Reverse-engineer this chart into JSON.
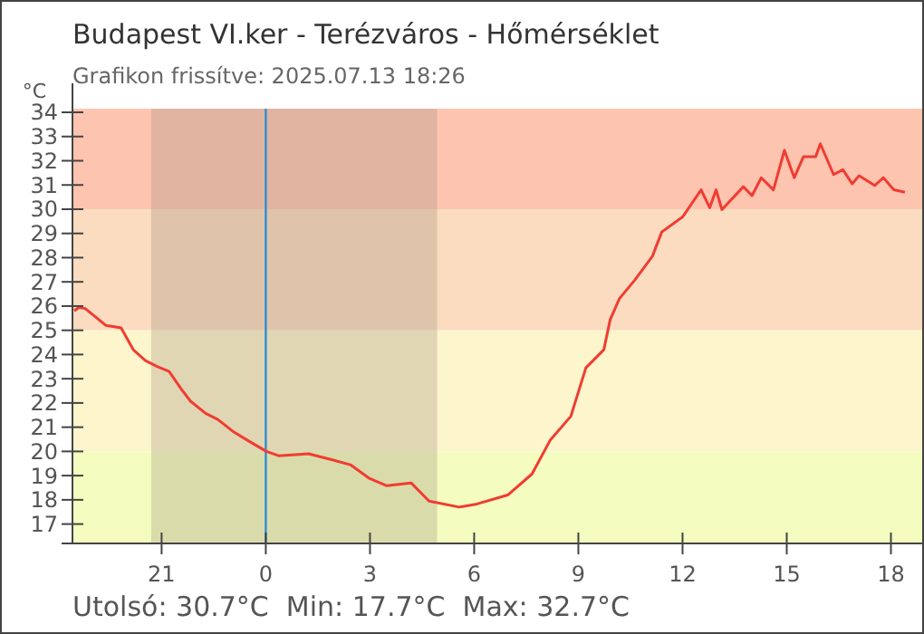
{
  "chart_data": {
    "type": "line",
    "title": "Budapest VI.ker - Terézváros - Hőmérséklet",
    "subtitle": "Grafikon frissítve: 2025.07.13 18:26",
    "ylabel": "°C",
    "annotations": [
      "Utolsó: 30.7°C  Min: 17.7°C  Max: 32.7°C"
    ],
    "xlim": [
      "2025-07-12T18:26",
      "2025-07-13T18:54"
    ],
    "ylim": [
      16.2,
      34.15
    ],
    "xticks": [
      {
        "value": "2025-07-12T21:00",
        "label": "21"
      },
      {
        "value": "2025-07-13T00:00",
        "label": "0"
      },
      {
        "value": "2025-07-13T03:00",
        "label": "3"
      },
      {
        "value": "2025-07-13T06:00",
        "label": "6"
      },
      {
        "value": "2025-07-13T09:00",
        "label": "9"
      },
      {
        "value": "2025-07-13T12:00",
        "label": "12"
      },
      {
        "value": "2025-07-13T15:00",
        "label": "15"
      },
      {
        "value": "2025-07-13T18:00",
        "label": "18"
      }
    ],
    "yticks": [
      17,
      18,
      19,
      20,
      21,
      22,
      23,
      24,
      25,
      26,
      27,
      28,
      29,
      30,
      31,
      32,
      33,
      34
    ],
    "grid": false,
    "marker": "none",
    "line_style": "solid",
    "bands": [
      {
        "axis": "y",
        "from": 30,
        "to": 34.15,
        "color": "#fdc4b0"
      },
      {
        "axis": "y",
        "from": 25,
        "to": 30,
        "color": "#fbdcc0"
      },
      {
        "axis": "y",
        "from": 20,
        "to": 25,
        "color": "#fdf5cc"
      },
      {
        "axis": "y",
        "from": 16.2,
        "to": 20,
        "color": "#f4fcc0"
      },
      {
        "axis": "x",
        "from": "2025-07-12T20:42",
        "to": "2025-07-13T04:56",
        "color": "#a0907a"
      }
    ],
    "ref_lines": [
      {
        "axis": "x",
        "value": "2025-07-13T00:00",
        "color": "#2a8fd8"
      }
    ],
    "series": [
      {
        "color": "#f03c32",
        "x": [
          "2025-07-12T18:29",
          "2025-07-12T18:37",
          "2025-07-12T18:48",
          "2025-07-12T18:58",
          "2025-07-12T19:24",
          "2025-07-12T19:50",
          "2025-07-12T20:11",
          "2025-07-12T20:32",
          "2025-07-12T20:53",
          "2025-07-12T21:13",
          "2025-07-12T21:34",
          "2025-07-12T21:50",
          "2025-07-12T22:16",
          "2025-07-12T22:37",
          "2025-07-12T23:03",
          "2025-07-12T23:29",
          "2025-07-13T00:01",
          "2025-07-13T00:22",
          "2025-07-13T01:14",
          "2025-07-13T01:55",
          "2025-07-13T02:26",
          "2025-07-13T02:58",
          "2025-07-13T03:29",
          "2025-07-13T04:11",
          "2025-07-13T04:42",
          "2025-07-13T05:34",
          "2025-07-13T06:05",
          "2025-07-13T06:58",
          "2025-07-13T07:40",
          "2025-07-13T08:11",
          "2025-07-13T08:47",
          "2025-07-13T09:13",
          "2025-07-13T09:44",
          "2025-07-13T09:55",
          "2025-07-13T10:11",
          "2025-07-13T10:37",
          "2025-07-13T11:08",
          "2025-07-13T11:24",
          "2025-07-13T12:00",
          "2025-07-13T12:32",
          "2025-07-13T12:47",
          "2025-07-13T12:58",
          "2025-07-13T13:08",
          "2025-07-13T13:45",
          "2025-07-13T14:00",
          "2025-07-13T14:16",
          "2025-07-13T14:37",
          "2025-07-13T14:56",
          "2025-07-13T15:13",
          "2025-07-13T15:29",
          "2025-07-13T15:50",
          "2025-07-13T15:58",
          "2025-07-13T16:21",
          "2025-07-13T16:37",
          "2025-07-13T16:53",
          "2025-07-13T17:05",
          "2025-07-13T17:32",
          "2025-07-13T17:47",
          "2025-07-13T18:05",
          "2025-07-13T18:24"
        ],
        "values": [
          25.8,
          25.94,
          25.9,
          25.7,
          25.2,
          25.1,
          24.2,
          23.75,
          23.5,
          23.3,
          22.57,
          22.07,
          21.57,
          21.32,
          20.83,
          20.45,
          20.0,
          19.82,
          19.9,
          19.65,
          19.45,
          18.9,
          18.58,
          18.7,
          17.95,
          17.7,
          17.83,
          18.2,
          19.07,
          20.45,
          21.45,
          23.45,
          24.2,
          25.44,
          26.31,
          27.06,
          28.06,
          29.06,
          29.68,
          30.8,
          30.06,
          30.8,
          29.98,
          30.93,
          30.56,
          31.3,
          30.8,
          32.43,
          31.3,
          32.17,
          32.17,
          32.7,
          31.43,
          31.63,
          31.05,
          31.38,
          30.98,
          31.3,
          30.8,
          30.7
        ]
      }
    ]
  }
}
